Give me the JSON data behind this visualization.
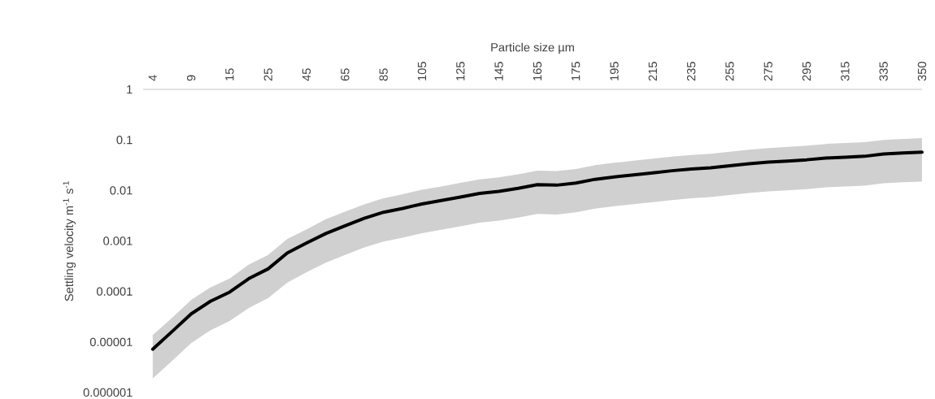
{
  "chart_data": {
    "type": "line",
    "xlabel": "Particle size µm",
    "ylabel": "Settling velocity m$^{-1}$ s$^{-1}$",
    "categories": [
      "4",
      null,
      "9",
      null,
      "15",
      null,
      "25",
      null,
      "45",
      null,
      "65",
      null,
      "85",
      null,
      "105",
      null,
      "125",
      null,
      "145",
      null,
      "165",
      null,
      "175",
      null,
      "195",
      null,
      "215",
      null,
      "235",
      null,
      "255",
      null,
      "275",
      null,
      "295",
      null,
      "315",
      null,
      "335",
      null,
      "350"
    ],
    "series": [
      {
        "color": "#000000",
        "values": [
          7.2e-06,
          1.6e-05,
          3.6e-05,
          6.4e-05,
          9.7e-05,
          0.00018,
          0.00028,
          0.00058,
          0.00091,
          0.0014,
          0.002,
          0.0028,
          0.0037,
          0.0044,
          0.0054,
          0.0063,
          0.0074,
          0.0087,
          0.0096,
          0.011,
          0.013,
          0.0127,
          0.014,
          0.0166,
          0.0185,
          0.0203,
          0.0223,
          0.0245,
          0.0265,
          0.028,
          0.0308,
          0.0338,
          0.0363,
          0.0382,
          0.0404,
          0.0438,
          0.0455,
          0.0473,
          0.0527,
          0.055,
          0.0571
        ],
        "upper": [
          1.37e-05,
          3e-05,
          6.8e-05,
          0.00012,
          0.00018,
          0.00034,
          0.00053,
          0.0011,
          0.0017,
          0.0027,
          0.0038,
          0.0053,
          0.007,
          0.0084,
          0.0103,
          0.012,
          0.0141,
          0.0165,
          0.0182,
          0.0209,
          0.0247,
          0.0241,
          0.0266,
          0.0315,
          0.0352,
          0.0386,
          0.0424,
          0.0466,
          0.0504,
          0.0532,
          0.0585,
          0.0642,
          0.069,
          0.0726,
          0.0768,
          0.0832,
          0.0865,
          0.0899,
          0.1,
          0.1045,
          0.1085
        ],
        "lower": [
          1.9e-06,
          4.2e-06,
          9.5e-06,
          1.7e-05,
          2.6e-05,
          4.7e-05,
          7.4e-05,
          0.00015,
          0.00024,
          0.00037,
          0.00053,
          0.00074,
          0.00097,
          0.00116,
          0.00142,
          0.00166,
          0.00195,
          0.00229,
          0.00252,
          0.00289,
          0.00342,
          0.00334,
          0.00368,
          0.00437,
          0.00487,
          0.00534,
          0.00586,
          0.00644,
          0.00697,
          0.00736,
          0.0081,
          0.00889,
          0.00955,
          0.01,
          0.0106,
          0.0115,
          0.012,
          0.0124,
          0.0139,
          0.0145,
          0.015
        ]
      }
    ],
    "ylim": [
      1e-06,
      1
    ],
    "yticks": [
      {
        "value": 1e-06,
        "label": "0.000001"
      },
      {
        "value": 1e-05,
        "label": "0.00001"
      },
      {
        "value": 0.0001,
        "label": "0.0001"
      },
      {
        "value": 0.001,
        "label": "0.001"
      },
      {
        "value": 0.01,
        "label": "0.01"
      },
      {
        "value": 0.1,
        "label": "0.1"
      },
      1
    ],
    "log": "y",
    "grid": false,
    "legend": false,
    "marker": "none",
    "line_style": "solid"
  }
}
